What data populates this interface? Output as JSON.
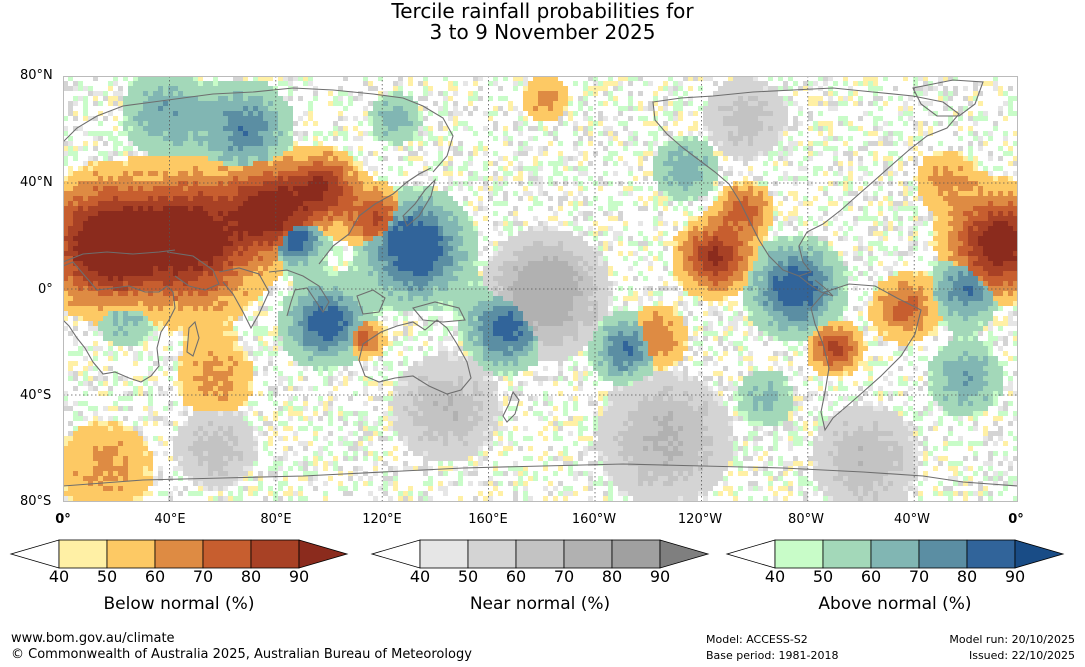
{
  "title": {
    "line1": "Tercile rainfall probabilities for",
    "line2": "3 to 9 November 2025"
  },
  "latitude_labels": [
    "80°N",
    "40°N",
    "0°",
    "40°S",
    "80°S"
  ],
  "longitude_labels": [
    "0°",
    "40°E",
    "80°E",
    "120°E",
    "160°E",
    "160°W",
    "120°W",
    "80°W",
    "40°W",
    "0°"
  ],
  "legends": [
    {
      "title": "Below normal (%)",
      "ticks": [
        "40",
        "50",
        "60",
        "70",
        "80",
        "90"
      ],
      "colors": [
        "#fff0a5",
        "#fdc964",
        "#de8b43",
        "#c75e2f",
        "#a84125",
        "#8b2b1d"
      ]
    },
    {
      "title": "Near normal (%)",
      "ticks": [
        "40",
        "50",
        "60",
        "70",
        "80",
        "90"
      ],
      "colors": [
        "#e6e6e6",
        "#d4d4d4",
        "#c3c3c3",
        "#b1b1b1",
        "#a0a0a0",
        "#7f7f7f"
      ]
    },
    {
      "title": "Above normal (%)",
      "ticks": [
        "40",
        "50",
        "60",
        "70",
        "80",
        "90"
      ],
      "colors": [
        "#c8fcc8",
        "#a3d8b9",
        "#81b6b3",
        "#5b8ea3",
        "#31649a",
        "#194c86"
      ]
    }
  ],
  "footer": {
    "site": "www.bom.gov.au/climate",
    "copyright": "© Commonwealth of Australia 2025, Australian Bureau of Meteorology",
    "model": "Model: ACCESS-S2",
    "base_period": "Base period: 1981-2018",
    "model_run": "Model run: 20/10/2025",
    "issued": "Issued: 22/10/2025"
  },
  "map_colors": {
    "below": [
      "#fff0a5",
      "#fdc964",
      "#de8b43",
      "#c75e2f",
      "#a84125",
      "#8b2b1d"
    ],
    "near": [
      "#e6e6e6",
      "#d4d4d4",
      "#c3c3c3",
      "#b1b1b1"
    ],
    "above": [
      "#c8fcc8",
      "#a3d8b9",
      "#81b6b3",
      "#5b8ea3",
      "#31649a"
    ],
    "coast": "#6e6e6e",
    "grid": "#555555"
  }
}
